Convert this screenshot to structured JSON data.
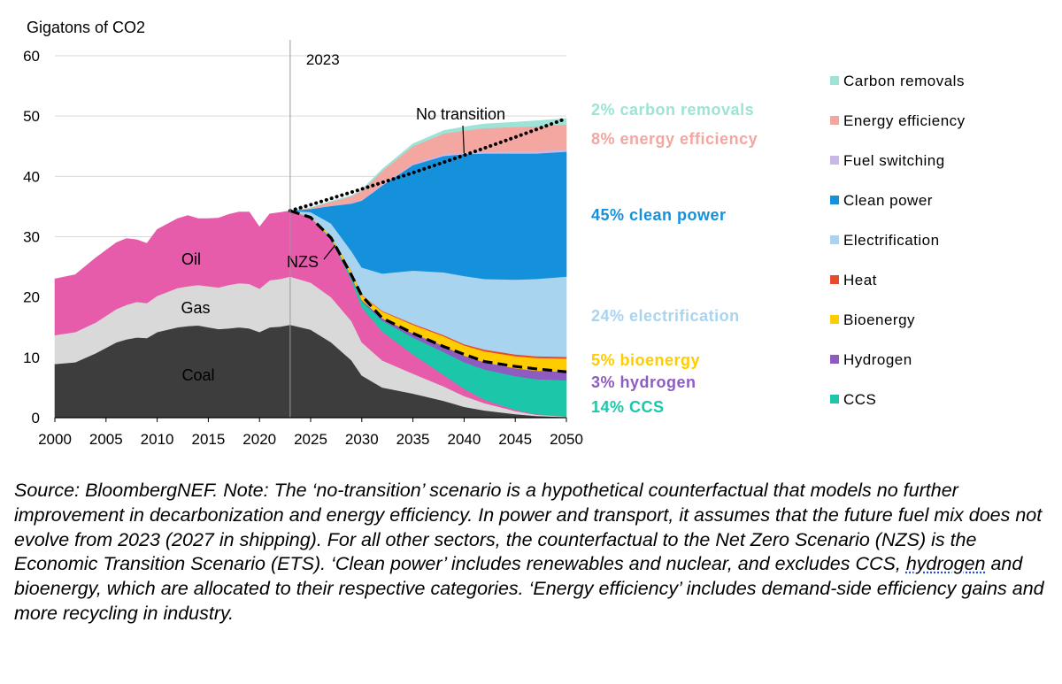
{
  "chart_data": {
    "type": "area",
    "stacked": true,
    "ylabel": "Gigatons of CO2",
    "ylim": [
      0,
      60
    ],
    "yticks": [
      0,
      10,
      20,
      30,
      40,
      50,
      60
    ],
    "xlim": [
      2000,
      2050
    ],
    "xticks": [
      2000,
      2005,
      2010,
      2015,
      2020,
      2025,
      2030,
      2035,
      2040,
      2045,
      2050
    ],
    "grid": true,
    "reference_year": {
      "x": 2023,
      "label": "2023"
    },
    "historical": {
      "x": [
        2000,
        2002,
        2004,
        2006,
        2007,
        2008,
        2009,
        2010,
        2012,
        2013,
        2014,
        2015,
        2016,
        2017,
        2018,
        2019,
        2020,
        2021,
        2022,
        2023
      ],
      "series": [
        {
          "name": "Coal",
          "color": "#3d3d3d",
          "label": "Coal",
          "values": [
            8.9,
            9.2,
            10.7,
            12.5,
            13.0,
            13.3,
            13.2,
            14.2,
            15.0,
            15.2,
            15.3,
            15.0,
            14.7,
            14.8,
            15.0,
            14.8,
            14.2,
            15.0,
            15.1,
            15.4
          ]
        },
        {
          "name": "Gas",
          "color": "#d9d9d9",
          "label": "Gas",
          "values": [
            4.8,
            5.0,
            5.1,
            5.5,
            5.7,
            5.9,
            5.8,
            6.0,
            6.5,
            6.6,
            6.7,
            6.8,
            6.9,
            7.2,
            7.3,
            7.4,
            7.2,
            7.8,
            7.9,
            8.0
          ]
        },
        {
          "name": "Oil",
          "color": "#e75bab",
          "label": "Oil",
          "values": [
            9.3,
            9.5,
            10.7,
            11.0,
            11.0,
            10.3,
            9.9,
            11.0,
            11.5,
            11.7,
            11.0,
            11.2,
            11.5,
            11.7,
            11.8,
            11.9,
            10.2,
            11.0,
            11.0,
            10.9
          ]
        }
      ]
    },
    "projection_nzs": {
      "x": [
        2023,
        2025,
        2027,
        2029,
        2030,
        2032,
        2035,
        2038,
        2040,
        2042,
        2045,
        2047,
        2050
      ],
      "series": [
        {
          "name": "Coal",
          "color": "#3d3d3d",
          "values": [
            15.4,
            14.6,
            12.5,
            9.5,
            7.0,
            5.0,
            4.0,
            2.8,
            1.8,
            1.2,
            0.6,
            0.3,
            0.1
          ]
        },
        {
          "name": "Gas",
          "color": "#d9d9d9",
          "values": [
            8.0,
            7.8,
            7.5,
            6.5,
            5.5,
            4.5,
            3.3,
            2.4,
            1.8,
            1.2,
            0.5,
            0.2,
            0.1
          ]
        },
        {
          "name": "Oil",
          "color": "#e75bab",
          "values": [
            10.9,
            10.8,
            9.6,
            6.8,
            5.8,
            4.8,
            3.2,
            1.9,
            1.2,
            0.6,
            0.2,
            0.1,
            0.0
          ]
        },
        {
          "name": "CCS",
          "color": "#1cc6a8",
          "values": [
            0.0,
            0.0,
            0.2,
            0.6,
            1.0,
            1.8,
            2.8,
            3.8,
            4.4,
            5.0,
            5.6,
            5.8,
            6.0
          ]
        },
        {
          "name": "Hydrogen",
          "color": "#8e5cc1",
          "values": [
            0.0,
            0.0,
            0.0,
            0.1,
            0.2,
            0.4,
            0.7,
            1.0,
            1.1,
            1.2,
            1.3,
            1.4,
            1.4
          ]
        },
        {
          "name": "Bioenergy",
          "color": "#ffcc00",
          "values": [
            0.0,
            0.1,
            0.4,
            0.7,
            0.8,
            1.1,
            1.4,
            1.6,
            1.7,
            1.8,
            2.0,
            2.1,
            2.2
          ]
        },
        {
          "name": "Heat",
          "color": "#e84a2e",
          "values": [
            0.0,
            0.0,
            0.0,
            0.1,
            0.1,
            0.1,
            0.2,
            0.2,
            0.2,
            0.3,
            0.3,
            0.3,
            0.3
          ]
        },
        {
          "name": "Electrification",
          "color": "#a9d4f0",
          "values": [
            0.0,
            0.8,
            2.0,
            3.3,
            4.5,
            6.2,
            8.8,
            10.4,
            11.3,
            11.7,
            12.4,
            12.8,
            13.3
          ]
        },
        {
          "name": "Clean power",
          "color": "#1591dc",
          "values": [
            0.0,
            0.5,
            2.9,
            7.9,
            11.1,
            14.6,
            17.5,
            19.3,
            20.2,
            20.8,
            20.9,
            20.8,
            20.7
          ]
        },
        {
          "name": "Fuel switching",
          "color": "#c9b8e6",
          "values": [
            0.0,
            0.0,
            0.1,
            0.1,
            0.1,
            0.2,
            0.2,
            0.3,
            0.3,
            0.3,
            0.4,
            0.4,
            0.4
          ]
        },
        {
          "name": "Energy efficiency",
          "color": "#f4a6a0",
          "values": [
            0.0,
            0.2,
            0.6,
            1.1,
            1.5,
            2.2,
            2.9,
            3.4,
            3.6,
            3.9,
            4.0,
            4.1,
            4.1
          ]
        },
        {
          "name": "Carbon removals",
          "color": "#9de3d6",
          "values": [
            0.0,
            0.0,
            0.1,
            0.1,
            0.2,
            0.3,
            0.4,
            0.5,
            0.6,
            0.7,
            0.8,
            0.9,
            1.0
          ]
        }
      ]
    },
    "lines": [
      {
        "name": "No transition",
        "style": "dotted",
        "label": "No transition",
        "x": [
          2023,
          2025,
          2030,
          2035,
          2040,
          2045,
          2050
        ],
        "y": [
          34.3,
          35.3,
          37.9,
          40.6,
          43.5,
          46.5,
          49.6
        ]
      },
      {
        "name": "NZS",
        "style": "dashed",
        "label": "NZS",
        "x": [
          2023,
          2025,
          2027,
          2029,
          2030,
          2032,
          2035,
          2038,
          2040,
          2042,
          2045,
          2047,
          2050
        ],
        "y": [
          34.3,
          33.2,
          29.8,
          23.6,
          20.2,
          16.5,
          14.0,
          11.8,
          10.5,
          9.3,
          8.5,
          8.1,
          7.6
        ]
      }
    ],
    "annotations": [
      {
        "text": "2% carbon removals",
        "color": "#9de3d6"
      },
      {
        "text": "8% energy efficiency",
        "color": "#f4a6a0"
      },
      {
        "text": "45% clean power",
        "color": "#1591dc"
      },
      {
        "text": "24% electrification",
        "color": "#a9d4f0"
      },
      {
        "text": "5% bioenergy",
        "color": "#ffcc00"
      },
      {
        "text": "3% hydrogen",
        "color": "#8e5cc1"
      },
      {
        "text": "14% CCS",
        "color": "#1cc6a8"
      }
    ],
    "legend": [
      {
        "name": "Carbon removals",
        "color": "#9de3d6"
      },
      {
        "name": "Energy efficiency",
        "color": "#f4a6a0"
      },
      {
        "name": "Fuel switching",
        "color": "#c9b8e6"
      },
      {
        "name": "Clean power",
        "color": "#1591dc"
      },
      {
        "name": "Electrification",
        "color": "#a9d4f0"
      },
      {
        "name": "Heat",
        "color": "#e84a2e"
      },
      {
        "name": "Bioenergy",
        "color": "#ffcc00"
      },
      {
        "name": "Hydrogen",
        "color": "#8e5cc1"
      },
      {
        "name": "CCS",
        "color": "#1cc6a8"
      }
    ],
    "legend_position": "right"
  },
  "note": {
    "part1": "Source: BloombergNEF. Note: The ‘no-transition’ scenario is a hypothetical counterfactual that models no further improvement in decarbonization and energy efficiency. In power and transport, it assumes that the future fuel mix does not evolve from 2023 (2027 in shipping). For all other sectors, the counterfactual to the Net Zero Scenario (NZS) is the Economic Transition Scenario (ETS). ‘Clean power’ includes renewables and nuclear, and excludes CCS, ",
    "highlight": "hydrogen",
    "part2": " and bioenergy, which are allocated to their respective categories. ‘Energy efficiency’ includes demand-side efficiency gains and more recycling in industry."
  }
}
